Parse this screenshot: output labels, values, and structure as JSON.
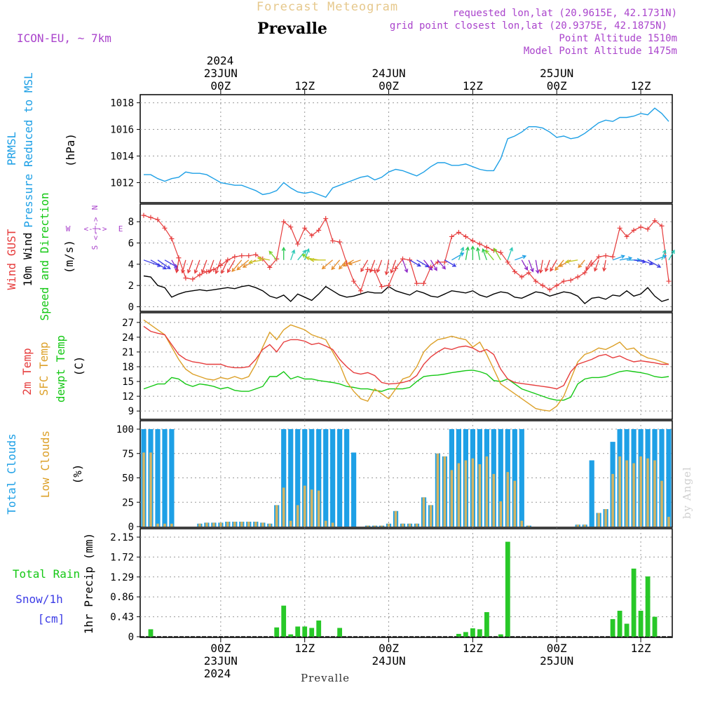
{
  "header": {
    "subtitle": "Forecast Meteogram",
    "station": "Prevalle",
    "model": "ICON-EU, ~ 7km",
    "requested": "requested lon,lat (20.9615E, 42.1731N)",
    "grid_point": "grid point closest lon,lat (20.9375E, 42.1875N)",
    "point_altitude": "Point Altitude 1510m",
    "model_altitude": "Model Point Altitude 1475m"
  },
  "footer": {
    "station": "Prevalle",
    "credit": "by Angel"
  },
  "time_axis": {
    "top_year": "2024",
    "bottom_year": "2024",
    "ticks": [
      {
        "hour": 12,
        "label": "00Z",
        "date": "23JUN"
      },
      {
        "hour": 24,
        "label": "12Z",
        "date": ""
      },
      {
        "hour": 36,
        "label": "00Z",
        "date": "24JUN"
      },
      {
        "hour": 48,
        "label": "12Z",
        "date": ""
      },
      {
        "hour": 60,
        "label": "00Z",
        "date": "25JUN"
      },
      {
        "hour": 72,
        "label": "12Z",
        "date": ""
      }
    ],
    "range": [
      1,
      76
    ]
  },
  "panel_labels": {
    "pressure": [
      "PRMSL",
      "Pressure Reduced to MSL",
      "(hPa)"
    ],
    "wind": [
      "Wind GUST",
      "10m Wind",
      "Speed and Direction",
      "(m/s)"
    ],
    "compass": {
      "n": "N",
      "s": "S",
      "w": "W",
      "e": "E",
      "arrows": "<-|->"
    },
    "temp": [
      "2m Temp",
      "SFC Temp",
      "dewpt Temp",
      "(C)"
    ],
    "clouds": [
      "Total Clouds",
      "Low Clouds",
      "(%)"
    ],
    "precip": [
      "Total Rain",
      "Snow/1h",
      "[cm]",
      "1hr Precip (mm)"
    ]
  },
  "colors": {
    "pressure": "#1ea0e6",
    "gust": "#e63c3c",
    "wind": "#000000",
    "temp2m": "#e63c3c",
    "sfc": "#dca028",
    "dewpt": "#14c814",
    "total_clouds": "#1ea0e6",
    "low_clouds": "#d2b464",
    "rain": "#28c828",
    "label_cyan": "#1ea0e6",
    "label_red": "#e63c3c",
    "label_green": "#14c814",
    "label_gold": "#dca028",
    "label_purple": "#aa44cc",
    "label_blue": "#3c3ce6"
  },
  "chart_data": [
    {
      "type": "line",
      "name": "pressure",
      "ylabel": "(hPa)",
      "ylim": [
        1010.6,
        1018.4
      ],
      "yticks": [
        1012,
        1014,
        1016,
        1018
      ],
      "x": [
        1,
        2,
        3,
        4,
        5,
        6,
        7,
        8,
        9,
        10,
        11,
        12,
        13,
        14,
        15,
        16,
        17,
        18,
        19,
        20,
        21,
        22,
        23,
        24,
        25,
        26,
        27,
        28,
        29,
        30,
        31,
        32,
        33,
        34,
        35,
        36,
        37,
        38,
        39,
        40,
        41,
        42,
        43,
        44,
        45,
        46,
        47,
        48,
        49,
        50,
        51,
        52,
        53,
        54,
        55,
        56,
        57,
        58,
        59,
        60,
        61,
        62,
        63,
        64,
        65,
        66,
        67,
        68,
        69,
        70,
        71,
        72,
        73,
        74,
        75,
        76
      ],
      "values": [
        1012.6,
        1012.6,
        1012.3,
        1012.1,
        1012.3,
        1012.4,
        1012.8,
        1012.7,
        1012.7,
        1012.6,
        1012.3,
        1012.0,
        1011.9,
        1011.8,
        1011.8,
        1011.6,
        1011.4,
        1011.1,
        1011.2,
        1011.4,
        1012.0,
        1011.6,
        1011.3,
        1011.2,
        1011.3,
        1011.1,
        1010.9,
        1011.6,
        1011.8,
        1012.0,
        1012.2,
        1012.4,
        1012.5,
        1012.2,
        1012.4,
        1012.8,
        1013.0,
        1012.9,
        1012.7,
        1012.5,
        1012.8,
        1013.2,
        1013.5,
        1013.5,
        1013.3,
        1013.3,
        1013.4,
        1013.2,
        1013.0,
        1012.9,
        1012.9,
        1013.8,
        1015.3,
        1015.5,
        1015.8,
        1016.2,
        1016.2,
        1016.1,
        1015.8,
        1015.4,
        1015.5,
        1015.3,
        1015.4,
        1015.7,
        1016.1,
        1016.5,
        1016.7,
        1016.6,
        1016.9,
        1016.9,
        1017.0,
        1017.2,
        1017.1,
        1017.6,
        1017.2,
        1016.6
      ]
    },
    {
      "type": "line",
      "name": "wind",
      "ylabel": "(m/s)",
      "ylim": [
        -0.3,
        9.4
      ],
      "yticks": [
        0,
        2,
        4,
        6,
        8
      ],
      "x": [
        1,
        2,
        3,
        4,
        5,
        6,
        7,
        8,
        9,
        10,
        11,
        12,
        13,
        14,
        15,
        16,
        17,
        18,
        19,
        20,
        21,
        22,
        23,
        24,
        25,
        26,
        27,
        28,
        29,
        30,
        31,
        32,
        33,
        34,
        35,
        36,
        37,
        38,
        39,
        40,
        41,
        42,
        43,
        44,
        45,
        46,
        47,
        48,
        49,
        50,
        51,
        52,
        53,
        54,
        55,
        56,
        57,
        58,
        59,
        60,
        61,
        62,
        63,
        64,
        65,
        66,
        67,
        68,
        69,
        70,
        71,
        72,
        73,
        74,
        75,
        76
      ],
      "gust": [
        8.6,
        8.4,
        8.2,
        7.4,
        6.4,
        4.6,
        2.7,
        2.6,
        3.0,
        3.3,
        3.5,
        3.9,
        4.4,
        4.7,
        4.8,
        4.8,
        4.9,
        4.5,
        3.7,
        4.5,
        8.0,
        7.5,
        5.9,
        7.4,
        6.7,
        7.2,
        8.3,
        6.2,
        6.1,
        4.1,
        2.4,
        1.5,
        3.5,
        3.4,
        1.9,
        2.0,
        3.6,
        4.5,
        4.4,
        2.2,
        2.2,
        3.7,
        4.2,
        4.2,
        6.6,
        7.0,
        6.6,
        6.2,
        5.9,
        5.6,
        5.3,
        5.1,
        4.2,
        3.3,
        2.8,
        3.2,
        2.4,
        2.0,
        1.6,
        2.0,
        2.4,
        2.5,
        2.8,
        3.2,
        4.0,
        4.7,
        4.8,
        4.7,
        7.4,
        6.6,
        7.2,
        7.5,
        7.3,
        8.1,
        7.6,
        2.4
      ],
      "speed": [
        2.9,
        2.8,
        2.0,
        1.8,
        0.9,
        1.2,
        1.4,
        1.5,
        1.6,
        1.5,
        1.6,
        1.7,
        1.8,
        1.7,
        1.9,
        2.0,
        1.8,
        1.5,
        1.0,
        0.8,
        1.1,
        0.5,
        1.2,
        0.9,
        0.6,
        1.2,
        1.9,
        1.5,
        1.1,
        0.9,
        1.0,
        1.2,
        1.4,
        1.3,
        1.3,
        1.9,
        1.5,
        1.3,
        1.1,
        1.5,
        1.3,
        1.0,
        0.9,
        1.2,
        1.5,
        1.4,
        1.3,
        1.5,
        1.1,
        0.9,
        1.2,
        1.4,
        1.3,
        0.9,
        0.8,
        1.1,
        1.4,
        1.3,
        1.0,
        1.2,
        1.4,
        1.3,
        1.0,
        0.3,
        0.8,
        0.9,
        0.7,
        1.1,
        1.0,
        1.5,
        1.0,
        1.2,
        1.8,
        1.0,
        0.5,
        0.7
      ],
      "direction_deg": [
        290,
        300,
        305,
        300,
        330,
        10,
        15,
        20,
        20,
        20,
        20,
        20,
        25,
        30,
        40,
        50,
        60,
        80,
        100,
        140,
        180,
        200,
        220,
        200,
        120,
        100,
        90,
        50,
        40,
        40,
        60,
        70,
        30,
        20,
        20,
        10,
        20,
        340,
        300,
        300,
        320,
        330,
        320,
        300,
        240,
        200,
        190,
        180,
        170,
        160,
        140,
        150,
        200,
        250,
        330,
        340,
        350,
        10,
        20,
        30,
        40,
        60,
        80,
        40,
        30,
        20,
        10,
        250,
        260,
        270,
        280,
        290,
        300,
        250,
        200,
        210
      ]
    },
    {
      "type": "line",
      "name": "temperature",
      "ylabel": "(C)",
      "ylim": [
        7.6,
        28.4
      ],
      "yticks": [
        9,
        12,
        15,
        18,
        21,
        24,
        27
      ],
      "x": [
        1,
        2,
        3,
        4,
        5,
        6,
        7,
        8,
        9,
        10,
        11,
        12,
        13,
        14,
        15,
        16,
        17,
        18,
        19,
        20,
        21,
        22,
        23,
        24,
        25,
        26,
        27,
        28,
        29,
        30,
        31,
        32,
        33,
        34,
        35,
        36,
        37,
        38,
        39,
        40,
        41,
        42,
        43,
        44,
        45,
        46,
        47,
        48,
        49,
        50,
        51,
        52,
        53,
        54,
        55,
        56,
        57,
        58,
        59,
        60,
        61,
        62,
        63,
        64,
        65,
        66,
        67,
        68,
        69,
        70,
        71,
        72,
        73,
        74,
        75,
        76
      ],
      "temp_2m": [
        26.2,
        25.2,
        24.8,
        24.5,
        22.5,
        20.5,
        19.5,
        19.0,
        18.8,
        18.5,
        18.5,
        18.5,
        18.0,
        17.8,
        17.8,
        18.0,
        19.5,
        21.5,
        22.5,
        21.0,
        23.0,
        23.5,
        23.5,
        23.2,
        22.5,
        22.8,
        22.2,
        21.5,
        19.5,
        18.0,
        16.8,
        16.5,
        16.8,
        16.2,
        14.8,
        14.5,
        14.6,
        14.8,
        15.2,
        16.2,
        18.5,
        20.0,
        21.0,
        21.8,
        21.5,
        22.0,
        22.2,
        21.8,
        21.0,
        21.5,
        20.5,
        17.5,
        15.5,
        14.8,
        14.6,
        14.4,
        14.2,
        14.0,
        13.8,
        13.5,
        14.2,
        17.0,
        18.5,
        19.0,
        19.5,
        20.2,
        20.5,
        19.8,
        20.2,
        19.5,
        19.0,
        19.2,
        19.0,
        18.8,
        18.5,
        18.5
      ],
      "temp_sfc": [
        27.5,
        26.5,
        25.5,
        24.5,
        22.0,
        19.5,
        17.5,
        16.5,
        16.0,
        15.5,
        15.3,
        15.8,
        15.5,
        16.0,
        15.5,
        16.0,
        18.5,
        22.0,
        25.0,
        23.5,
        25.5,
        26.5,
        26.0,
        25.5,
        24.5,
        24.0,
        23.5,
        21.0,
        18.5,
        15.0,
        13.0,
        11.5,
        11.0,
        13.5,
        12.5,
        11.5,
        13.5,
        15.5,
        16.0,
        18.0,
        21.0,
        22.5,
        23.5,
        23.8,
        24.2,
        23.8,
        23.5,
        22.0,
        23.0,
        20.5,
        17.5,
        14.5,
        13.5,
        12.5,
        11.5,
        10.5,
        9.5,
        9.2,
        9.0,
        10.0,
        12.0,
        15.5,
        19.0,
        20.5,
        21.0,
        21.8,
        21.5,
        22.2,
        23.0,
        21.5,
        21.8,
        20.5,
        19.8,
        19.5,
        19.0,
        18.5
      ],
      "temp_dewpt": [
        13.5,
        14.0,
        14.5,
        14.5,
        15.8,
        15.5,
        14.5,
        14.0,
        14.5,
        14.3,
        14.0,
        13.5,
        13.8,
        13.2,
        13.0,
        13.0,
        13.5,
        14.0,
        16.0,
        16.0,
        17.0,
        15.5,
        16.0,
        15.5,
        15.5,
        15.2,
        15.0,
        14.8,
        14.5,
        14.0,
        13.8,
        13.5,
        13.5,
        13.2,
        13.0,
        13.5,
        13.5,
        13.5,
        13.8,
        15.0,
        16.0,
        16.2,
        16.3,
        16.5,
        16.8,
        17.0,
        17.2,
        17.3,
        17.0,
        16.5,
        15.2,
        15.0,
        15.5,
        14.5,
        13.5,
        13.0,
        12.5,
        12.0,
        11.5,
        11.2,
        11.2,
        11.8,
        14.5,
        15.5,
        15.8,
        15.8,
        16.0,
        16.5,
        17.0,
        17.2,
        17.0,
        16.8,
        16.5,
        16.0,
        15.8,
        16.0
      ]
    },
    {
      "type": "bar",
      "name": "clouds",
      "ylabel": "(%)",
      "ylim": [
        0,
        100
      ],
      "yticks": [
        0,
        25,
        50,
        75,
        100
      ],
      "x": [
        1,
        2,
        3,
        4,
        5,
        6,
        7,
        8,
        9,
        10,
        11,
        12,
        13,
        14,
        15,
        16,
        17,
        18,
        19,
        20,
        21,
        22,
        23,
        24,
        25,
        26,
        27,
        28,
        29,
        30,
        31,
        32,
        33,
        34,
        35,
        36,
        37,
        38,
        39,
        40,
        41,
        42,
        43,
        44,
        45,
        46,
        47,
        48,
        49,
        50,
        51,
        52,
        53,
        54,
        55,
        56,
        57,
        58,
        59,
        60,
        61,
        62,
        63,
        64,
        65,
        66,
        67,
        68,
        69,
        70,
        71,
        72,
        73,
        74,
        75,
        76
      ],
      "total": [
        100,
        100,
        100,
        100,
        100,
        0,
        0,
        0,
        3,
        4,
        4,
        4,
        5,
        5,
        5,
        5,
        5,
        4,
        3,
        22,
        100,
        100,
        100,
        100,
        100,
        100,
        100,
        100,
        100,
        100,
        76,
        0,
        1,
        1,
        1,
        3,
        16,
        3,
        3,
        3,
        30,
        22,
        75,
        72,
        100,
        100,
        100,
        100,
        100,
        100,
        100,
        100,
        100,
        100,
        100,
        1,
        0,
        0,
        0,
        0,
        0,
        0,
        2,
        2,
        68,
        14,
        18,
        87,
        100,
        100,
        100,
        100,
        100,
        100,
        100,
        100
      ],
      "low": [
        76,
        76,
        3,
        3,
        3,
        0,
        0,
        0,
        3,
        4,
        4,
        4,
        5,
        5,
        5,
        5,
        5,
        4,
        3,
        22,
        40,
        6,
        22,
        42,
        38,
        37,
        6,
        4,
        0,
        0,
        0,
        0,
        1,
        1,
        1,
        3,
        16,
        3,
        3,
        3,
        30,
        22,
        75,
        72,
        58,
        65,
        68,
        70,
        64,
        72,
        54,
        26,
        56,
        47,
        6,
        1,
        0,
        0,
        0,
        0,
        0,
        0,
        2,
        2,
        0,
        14,
        18,
        54,
        72,
        68,
        65,
        72,
        70,
        68,
        47,
        10
      ]
    },
    {
      "type": "bar",
      "name": "precip",
      "ylabel": "1hr Precip (mm)",
      "ylim": [
        0,
        2.15
      ],
      "yticks": [
        0,
        0.43,
        0.86,
        1.29,
        1.72,
        2.15
      ],
      "ytick_labels": [
        "0",
        "0.43",
        "0.86",
        "1.29",
        "1.72",
        "2.15"
      ],
      "x": [
        1,
        2,
        3,
        4,
        5,
        6,
        7,
        8,
        9,
        10,
        11,
        12,
        13,
        14,
        15,
        16,
        17,
        18,
        19,
        20,
        21,
        22,
        23,
        24,
        25,
        26,
        27,
        28,
        29,
        30,
        31,
        32,
        33,
        34,
        35,
        36,
        37,
        38,
        39,
        40,
        41,
        42,
        43,
        44,
        45,
        46,
        47,
        48,
        49,
        50,
        51,
        52,
        53,
        54,
        55,
        56,
        57,
        58,
        59,
        60,
        61,
        62,
        63,
        64,
        65,
        66,
        67,
        68,
        69,
        70,
        71,
        72,
        73,
        74,
        75,
        76
      ],
      "rain": [
        0,
        0.16,
        0,
        0,
        0,
        0,
        0,
        0,
        0,
        0,
        0,
        0,
        0,
        0,
        0,
        0,
        0,
        0,
        0,
        0.2,
        0.67,
        0.05,
        0.22,
        0.22,
        0.19,
        0.35,
        0,
        0,
        0.19,
        0,
        0,
        0,
        0,
        0,
        0,
        0,
        0,
        0,
        0,
        0,
        0,
        0,
        0,
        0,
        0,
        0.06,
        0.1,
        0.18,
        0.16,
        0.53,
        0,
        0.05,
        2.05,
        0,
        0,
        0,
        0,
        0,
        0,
        0,
        0,
        0,
        0,
        0,
        0,
        0,
        0,
        0.38,
        0.56,
        0.28,
        1.47,
        0.56,
        1.3,
        0.43,
        0,
        0
      ],
      "snow": [
        0,
        0,
        0,
        0,
        0,
        0,
        0,
        0,
        0,
        0,
        0,
        0,
        0,
        0,
        0,
        0,
        0,
        0,
        0,
        0,
        0,
        0,
        0,
        0,
        0,
        0,
        0,
        0,
        0,
        0,
        0,
        0,
        0,
        0,
        0,
        0,
        0,
        0,
        0,
        0,
        0,
        0,
        0,
        0,
        0,
        0,
        0,
        0,
        0,
        0,
        0,
        0,
        0,
        0,
        0,
        0,
        0,
        0,
        0,
        0,
        0,
        0,
        0,
        0,
        0,
        0,
        0,
        0,
        0,
        0,
        0,
        0,
        0,
        0,
        0,
        0
      ]
    }
  ]
}
